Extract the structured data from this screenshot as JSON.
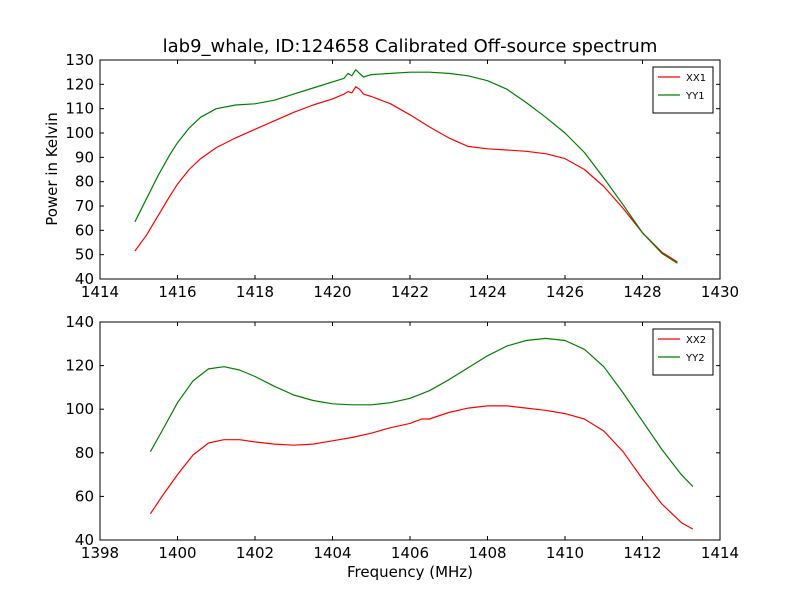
{
  "chart_data": [
    {
      "type": "line",
      "title": "lab9_whale, ID:124658 Calibrated Off-source spectrum",
      "xlabel": "",
      "ylabel": "Power in Kelvin",
      "xlim": [
        1414,
        1430
      ],
      "ylim": [
        40,
        130
      ],
      "xticks": [
        1414,
        1416,
        1418,
        1420,
        1422,
        1424,
        1426,
        1428,
        1430
      ],
      "yticks": [
        40,
        50,
        60,
        70,
        80,
        90,
        100,
        110,
        120,
        130
      ],
      "xtick_labels": [
        "1414",
        "1416",
        "1418",
        "1420",
        "1422",
        "1424",
        "1426",
        "1428",
        "1430"
      ],
      "ytick_labels": [
        "40",
        "50",
        "60",
        "70",
        "80",
        "90",
        "100",
        "110",
        "120",
        "130"
      ],
      "legend_position": "top-right",
      "grid": false,
      "series": [
        {
          "name": "XX1",
          "color": "#ff0000",
          "x": [
            1414.9,
            1415.2,
            1415.5,
            1415.8,
            1416.0,
            1416.3,
            1416.6,
            1417.0,
            1417.5,
            1418.0,
            1418.5,
            1419.0,
            1419.5,
            1420.0,
            1420.3,
            1420.4,
            1420.5,
            1420.6,
            1420.7,
            1420.8,
            1421.0,
            1421.5,
            1422.0,
            1422.5,
            1423.0,
            1423.5,
            1424.0,
            1424.5,
            1425.0,
            1425.5,
            1426.0,
            1426.5,
            1427.0,
            1427.5,
            1428.0,
            1428.5,
            1428.9
          ],
          "y": [
            51.5,
            58,
            66,
            74,
            79,
            85,
            89.5,
            94,
            98,
            101.5,
            105,
            108.5,
            111.5,
            114,
            116,
            117,
            116.5,
            119,
            118,
            116,
            115,
            112,
            107.5,
            102.5,
            98,
            94.5,
            93.5,
            93,
            92.5,
            91.5,
            89.5,
            85,
            78,
            69,
            59,
            51,
            47
          ]
        },
        {
          "name": "YY1",
          "color": "#008000",
          "x": [
            1414.9,
            1415.2,
            1415.5,
            1415.8,
            1416.0,
            1416.3,
            1416.6,
            1417.0,
            1417.5,
            1418.0,
            1418.5,
            1419.0,
            1419.5,
            1420.0,
            1420.3,
            1420.4,
            1420.5,
            1420.6,
            1420.7,
            1420.8,
            1421.0,
            1421.5,
            1422.0,
            1422.5,
            1423.0,
            1423.5,
            1424.0,
            1424.5,
            1425.0,
            1425.5,
            1426.0,
            1426.5,
            1427.0,
            1427.5,
            1428.0,
            1428.5,
            1428.9
          ],
          "y": [
            63.5,
            73,
            82.5,
            91,
            96,
            102,
            106.5,
            110,
            111.5,
            112,
            113.5,
            116,
            118.5,
            121,
            122.5,
            124.5,
            123.5,
            126,
            124.5,
            123,
            124,
            124.5,
            125,
            125,
            124.5,
            123.5,
            121.5,
            118,
            112.5,
            106.5,
            100,
            92,
            81.5,
            70.5,
            59,
            50.5,
            46.5
          ]
        }
      ]
    },
    {
      "type": "line",
      "title": "",
      "xlabel": "Frequency (MHz)",
      "ylabel": "",
      "xlim": [
        1398,
        1414
      ],
      "ylim": [
        40,
        140
      ],
      "xticks": [
        1398,
        1400,
        1402,
        1404,
        1406,
        1408,
        1410,
        1412,
        1414
      ],
      "yticks": [
        40,
        60,
        80,
        100,
        120,
        140
      ],
      "xtick_labels": [
        "1398",
        "1400",
        "1402",
        "1404",
        "1406",
        "1408",
        "1410",
        "1412",
        "1414"
      ],
      "ytick_labels": [
        "40",
        "60",
        "80",
        "100",
        "120",
        "140"
      ],
      "legend_position": "top-right",
      "grid": false,
      "series": [
        {
          "name": "XX2",
          "color": "#ff0000",
          "x": [
            1399.3,
            1399.6,
            1400.0,
            1400.4,
            1400.8,
            1401.2,
            1401.6,
            1402.0,
            1402.5,
            1403.0,
            1403.5,
            1404.0,
            1404.5,
            1405.0,
            1405.5,
            1406.0,
            1406.3,
            1406.5,
            1407.0,
            1407.5,
            1408.0,
            1408.5,
            1409.0,
            1409.5,
            1410.0,
            1410.5,
            1411.0,
            1411.5,
            1412.0,
            1412.5,
            1413.0,
            1413.3
          ],
          "y": [
            52,
            60,
            70,
            79,
            84.5,
            86,
            86,
            85,
            84,
            83.5,
            84,
            85.5,
            87,
            89,
            91.5,
            93.5,
            95.5,
            95.5,
            98.5,
            100.5,
            101.5,
            101.5,
            100.5,
            99.5,
            98,
            95.5,
            90,
            80.5,
            68,
            56.5,
            48,
            45
          ]
        },
        {
          "name": "YY2",
          "color": "#008000",
          "x": [
            1399.3,
            1399.6,
            1400.0,
            1400.4,
            1400.8,
            1401.2,
            1401.6,
            1402.0,
            1402.5,
            1403.0,
            1403.5,
            1404.0,
            1404.5,
            1405.0,
            1405.5,
            1406.0,
            1406.5,
            1407.0,
            1407.5,
            1408.0,
            1408.5,
            1409.0,
            1409.5,
            1410.0,
            1410.5,
            1411.0,
            1411.5,
            1412.0,
            1412.5,
            1413.0,
            1413.3
          ],
          "y": [
            80.5,
            90,
            103,
            113,
            118.5,
            119.5,
            118,
            115,
            110.5,
            106.5,
            104,
            102.5,
            102,
            102,
            103,
            105,
            108.5,
            113.5,
            119,
            124.5,
            129,
            131.5,
            132.5,
            131.5,
            127.5,
            119.5,
            107.5,
            94.5,
            81.5,
            70,
            64.5
          ]
        }
      ]
    }
  ]
}
